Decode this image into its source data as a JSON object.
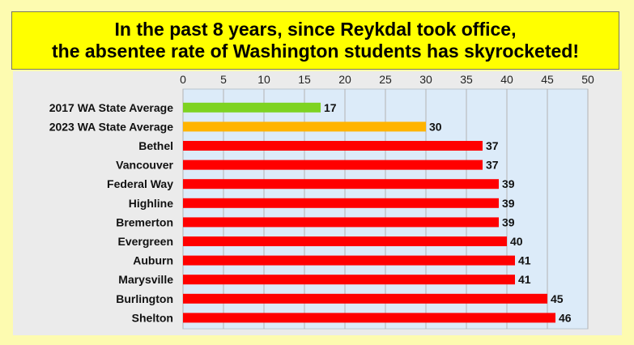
{
  "chart_data": {
    "type": "bar",
    "orientation": "horizontal",
    "title_lines": [
      "In the past 8 years, since Reykdal took office,",
      "the absentee rate of Washington students has skyrocketed!"
    ],
    "xlim": [
      0,
      50
    ],
    "x_ticks": [
      0,
      5,
      10,
      15,
      20,
      25,
      30,
      35,
      40,
      45,
      50
    ],
    "x_axis_position": "top",
    "grid": true,
    "categories": [
      "2017 WA State Average",
      "2023 WA State Average",
      "Bethel",
      "Vancouver",
      "Federal Way",
      "Highline",
      "Bremerton",
      "Evergreen",
      "Auburn",
      "Marysville",
      "Burlington",
      "Shelton"
    ],
    "values": [
      17,
      30,
      37,
      37,
      39,
      39,
      39,
      40,
      41,
      41,
      45,
      46
    ],
    "bar_colors": [
      "#7ed321",
      "#ffb400",
      "#ff0000",
      "#ff0000",
      "#ff0000",
      "#ff0000",
      "#ff0000",
      "#ff0000",
      "#ff0000",
      "#ff0000",
      "#ff0000",
      "#ff0000"
    ],
    "plot_background": "#dcebf9",
    "panel_background": "#ebebeb",
    "page_background": "#fdfbb0",
    "title_background": "#ffff00"
  }
}
